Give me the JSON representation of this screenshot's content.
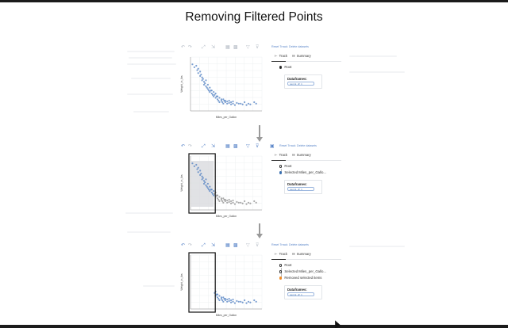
{
  "title": "Removing Filtered Points",
  "colors": {
    "accent": "#5b86c9",
    "point_selected": "#4f7fc2",
    "point_unselected": "#8c8c8c",
    "removed_node": "#f08a24"
  },
  "toolbar": {
    "icons": [
      "undo-icon",
      "redo-icon",
      "zoom-icon",
      "brush-icon",
      "layout-icon",
      "grid-icon",
      "filter-icon",
      "remove-filter-icon",
      "calendar-icon"
    ],
    "links": [
      "Reset Trrack",
      "Delete datasets"
    ]
  },
  "tabs": {
    "track": "Track",
    "summary": "Summary"
  },
  "panels": [
    {
      "nodes": [
        "Root"
      ],
      "dataframes_label": "Dataframes:",
      "chip": "penmt_df_1"
    },
    {
      "nodes": [
        "Root",
        "Selected Miles_per_Gallo..."
      ],
      "dataframes_label": "Dataframes:",
      "chip": "penmt_df_1"
    },
    {
      "nodes": [
        "Root",
        "Selected Miles_per_Gallo...",
        "Removed selected items"
      ],
      "dataframes_label": "Dataframes:",
      "chip": "penmt_df_1"
    }
  ],
  "chart_data": [
    {
      "type": "scatter",
      "xlabel": "Miles_per_Gallon",
      "ylabel": "Weight_in_lbs",
      "xlim": [
        10,
        47
      ],
      "ylim": [
        1500,
        5200
      ],
      "series": [
        {
          "x": [
            11,
            12,
            13,
            13.5,
            14,
            14,
            15,
            15,
            15.5,
            16,
            16,
            16.5,
            17,
            17,
            17.5,
            18,
            18,
            18.5,
            19,
            19,
            19.5,
            20,
            20,
            20.5,
            21,
            21,
            21.5,
            22,
            22,
            22.5,
            23,
            23,
            23.5,
            24,
            24,
            24.5,
            25,
            25,
            26,
            26,
            26.5,
            27,
            27,
            27.5,
            28,
            28,
            29,
            29,
            30,
            30,
            31,
            31,
            32,
            32,
            33,
            34,
            35,
            36,
            37,
            38,
            39,
            40,
            41,
            43,
            44
          ],
          "y": [
            4700,
            4500,
            4600,
            4300,
            4400,
            4100,
            4200,
            3900,
            4000,
            3800,
            3600,
            3700,
            3500,
            3300,
            3400,
            3200,
            3600,
            3100,
            3000,
            3300,
            2900,
            2800,
            3100,
            2900,
            2700,
            2900,
            2600,
            2500,
            2800,
            2600,
            2400,
            2700,
            2500,
            2300,
            2500,
            2200,
            2400,
            2100,
            2300,
            2200,
            2100,
            2000,
            2300,
            2200,
            2100,
            2200,
            2000,
            2150,
            2050,
            2200,
            1950,
            2100,
            2000,
            2150,
            1900,
            2050,
            2000,
            2000,
            1950,
            2100,
            1900,
            2000,
            1950,
            2100,
            2000
          ]
        }
      ]
    }
  ]
}
